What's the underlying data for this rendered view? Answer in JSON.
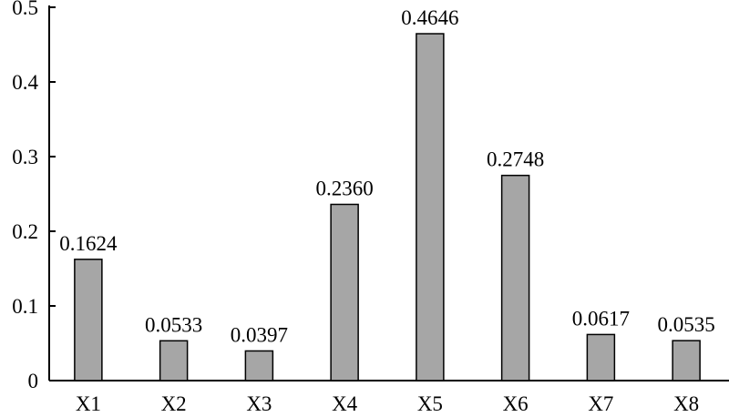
{
  "chart_data": {
    "type": "bar",
    "categories": [
      "X1",
      "X2",
      "X3",
      "X4",
      "X5",
      "X6",
      "X7",
      "X8"
    ],
    "values": [
      0.1624,
      0.0533,
      0.0397,
      0.236,
      0.4646,
      0.2748,
      0.0617,
      0.0535
    ],
    "value_labels": [
      "0.1624",
      "0.0533",
      "0.0397",
      "0.2360",
      "0.4646",
      "0.2748",
      "0.0617",
      "0.0535"
    ],
    "color": "#a6a6a6",
    "ylim": [
      0,
      0.5
    ],
    "yticks": [
      0,
      0.1,
      0.2,
      0.3,
      0.4,
      0.5
    ],
    "grid": false
  }
}
